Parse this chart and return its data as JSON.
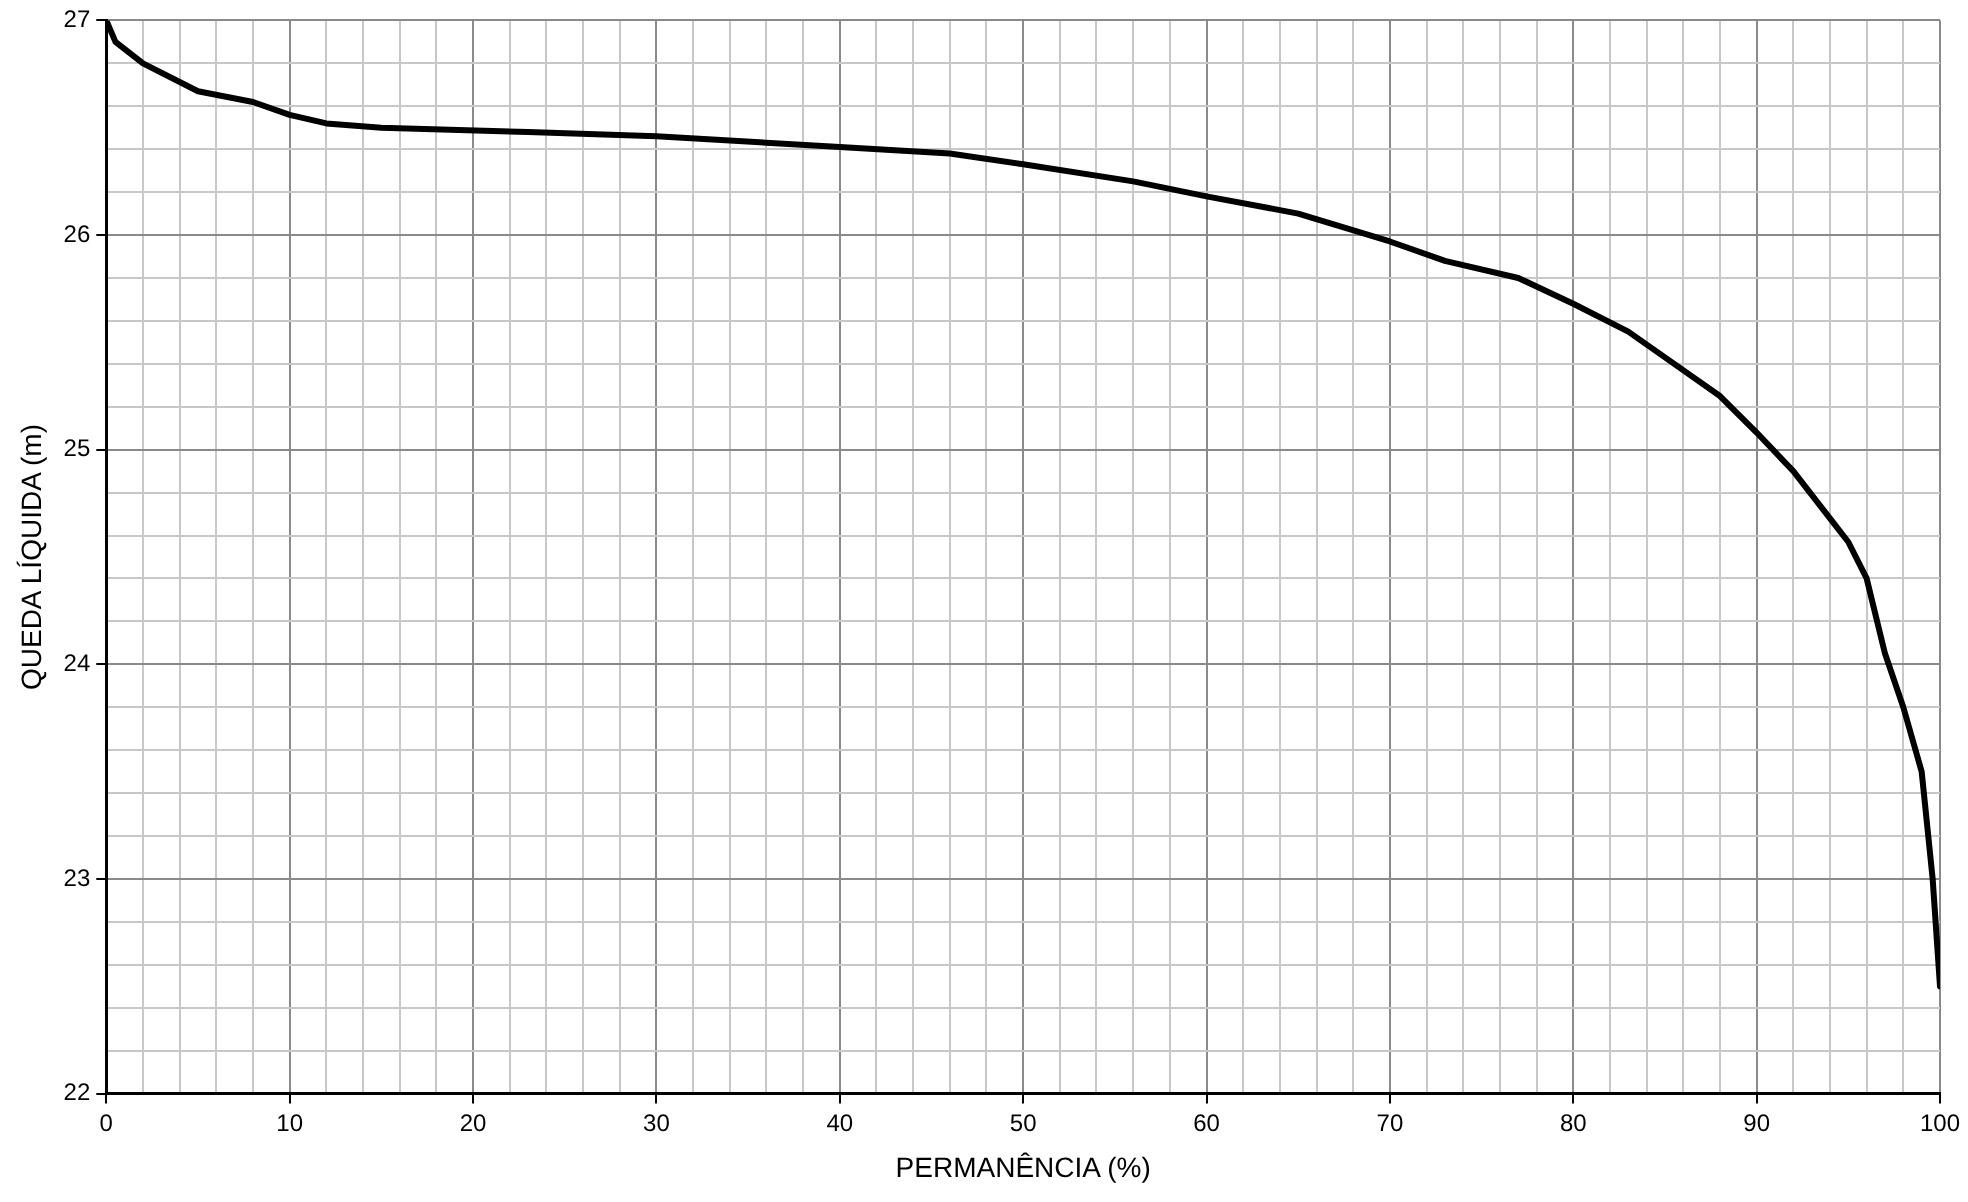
{
  "chart_data": {
    "type": "line",
    "xlabel": "PERMANÊNCIA (%)",
    "ylabel": "QUEDA LÍQUIDA (m)",
    "x": [
      0,
      0.5,
      2,
      5,
      8,
      10,
      12,
      15,
      23,
      30,
      40,
      46,
      50,
      56,
      60,
      65,
      70,
      73,
      77,
      80,
      83,
      85,
      88,
      90,
      92,
      94,
      95,
      96,
      97,
      98,
      99,
      99.6,
      100
    ],
    "series": [
      {
        "color": "#000000",
        "values": [
          27.0,
          26.9,
          26.8,
          26.67,
          26.62,
          26.56,
          26.52,
          26.5,
          26.48,
          26.46,
          26.41,
          26.38,
          26.33,
          26.25,
          26.18,
          26.1,
          25.97,
          25.88,
          25.8,
          25.68,
          25.55,
          25.43,
          25.25,
          25.08,
          24.9,
          24.68,
          24.57,
          24.4,
          24.05,
          23.8,
          23.5,
          23.0,
          22.5
        ]
      }
    ],
    "xlim": [
      0,
      100
    ],
    "xticks": [
      0,
      {
        "value": 2,
        "label": null
      },
      {
        "value": 4,
        "label": null
      },
      {
        "value": 6,
        "label": null
      },
      {
        "value": 8,
        "label": null
      },
      10,
      {
        "value": 12,
        "label": null
      },
      {
        "value": 14,
        "label": null
      },
      {
        "value": 16,
        "label": null
      },
      {
        "value": 18,
        "label": null
      },
      20,
      {
        "value": 22,
        "label": null
      },
      {
        "value": 24,
        "label": null
      },
      {
        "value": 26,
        "label": null
      },
      {
        "value": 28,
        "label": null
      },
      30,
      {
        "value": 32,
        "label": null
      },
      {
        "value": 34,
        "label": null
      },
      {
        "value": 36,
        "label": null
      },
      {
        "value": 38,
        "label": null
      },
      40,
      {
        "value": 42,
        "label": null
      },
      {
        "value": 44,
        "label": null
      },
      {
        "value": 46,
        "label": null
      },
      {
        "value": 48,
        "label": null
      },
      50,
      {
        "value": 52,
        "label": null
      },
      {
        "value": 54,
        "label": null
      },
      {
        "value": 56,
        "label": null
      },
      {
        "value": 58,
        "label": null
      },
      60,
      {
        "value": 62,
        "label": null
      },
      {
        "value": 64,
        "label": null
      },
      {
        "value": 66,
        "label": null
      },
      {
        "value": 68,
        "label": null
      },
      70,
      {
        "value": 72,
        "label": null
      },
      {
        "value": 74,
        "label": null
      },
      {
        "value": 76,
        "label": null
      },
      {
        "value": 78,
        "label": null
      },
      80,
      {
        "value": 82,
        "label": null
      },
      {
        "value": 84,
        "label": null
      },
      {
        "value": 86,
        "label": null
      },
      {
        "value": 88,
        "label": null
      },
      90,
      {
        "value": 92,
        "label": null
      },
      {
        "value": 94,
        "label": null
      },
      {
        "value": 96,
        "label": null
      },
      {
        "value": 98,
        "label": null
      },
      100
    ],
    "ylim": [
      22,
      27
    ],
    "yticks": [
      22,
      {
        "value": 22.2,
        "label": null
      },
      {
        "value": 22.4,
        "label": null
      },
      {
        "value": 22.6,
        "label": null
      },
      {
        "value": 22.8,
        "label": null
      },
      23,
      {
        "value": 23.2,
        "label": null
      },
      {
        "value": 23.4,
        "label": null
      },
      {
        "value": 23.6,
        "label": null
      },
      {
        "value": 23.8,
        "label": null
      },
      24,
      {
        "value": 24.2,
        "label": null
      },
      {
        "value": 24.4,
        "label": null
      },
      {
        "value": 24.6,
        "label": null
      },
      {
        "value": 24.8,
        "label": null
      },
      25,
      {
        "value": 25.2,
        "label": null
      },
      {
        "value": 25.4,
        "label": null
      },
      {
        "value": 25.6,
        "label": null
      },
      {
        "value": 25.8,
        "label": null
      },
      26,
      {
        "value": 26.2,
        "label": null
      },
      {
        "value": 26.4,
        "label": null
      },
      {
        "value": 26.6,
        "label": null
      },
      {
        "value": 26.8,
        "label": null
      },
      27
    ],
    "grid": true,
    "legend": false,
    "marker": "none",
    "line_style": "solid"
  }
}
